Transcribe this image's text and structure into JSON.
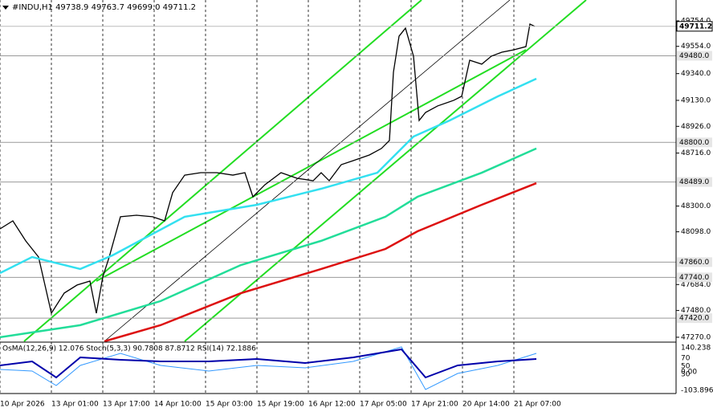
{
  "chart_data": {
    "type": "line",
    "header": "#INDU,H1 49738.9 49763.7 49699.0 49711.2",
    "xlim": [
      0,
      210.5
    ],
    "ylim": [
      47238,
      49918
    ],
    "grid": true,
    "xticks": [
      {
        "value": 0,
        "label": "10 Apr 2026"
      },
      {
        "value": 16,
        "label": "13 Apr 01:00"
      },
      {
        "value": 32,
        "label": "13 Apr 17:00"
      },
      {
        "value": 48,
        "label": "14 Apr 10:00"
      },
      {
        "value": 64,
        "label": "15 Apr 03:00"
      },
      {
        "value": 80,
        "label": "15 Apr 19:00"
      },
      {
        "value": 96,
        "label": "16 Apr 12:00"
      },
      {
        "value": 112,
        "label": "17 Apr 05:00"
      },
      {
        "value": 128,
        "label": "17 Apr 21:00"
      },
      {
        "value": 144,
        "label": "20 Apr 14:00"
      },
      {
        "value": 160,
        "label": "21 Apr 07:00"
      }
    ],
    "yticks": [
      {
        "value": 49754,
        "label": "49754.0"
      },
      {
        "value": 49554,
        "label": "49554.0"
      },
      {
        "value": 49340,
        "label": "49340.0"
      },
      {
        "value": 49130,
        "label": "49130.0"
      },
      {
        "value": 48926,
        "label": "48926.0"
      },
      {
        "value": 48716,
        "label": "48716.0"
      },
      {
        "value": 48300,
        "label": "48300.0"
      },
      {
        "value": 48098,
        "label": "48098.0"
      },
      {
        "value": 47684,
        "label": "47684.0"
      },
      {
        "value": 47480,
        "label": "47480.0"
      },
      {
        "value": 47270,
        "label": "47270.0"
      }
    ],
    "levels": [
      {
        "value": 49480,
        "label": "49480.0"
      },
      {
        "value": 48800,
        "label": "48800.0"
      },
      {
        "value": 48489,
        "label": "48489.0"
      },
      {
        "value": 47860,
        "label": "47860.0"
      },
      {
        "value": 47740,
        "label": "47740.0"
      },
      {
        "value": 47420,
        "label": "47420.0"
      }
    ],
    "last_price": {
      "value": 49711.2,
      "label": "49711.2"
    },
    "series": [
      {
        "color": "#000000",
        "x": [
          0,
          4,
          8,
          12,
          16,
          20,
          24,
          28,
          30,
          32,
          34,
          37.5,
          42.5,
          47.5,
          51.25,
          53.75,
          57.5,
          62.5,
          67.5,
          72.5,
          76.25,
          78.75,
          82.5,
          87.5,
          92.5,
          97.5,
          100,
          102.5,
          106.25,
          110,
          115,
          118.75,
          121.25,
          122.5,
          124.25,
          126.25,
          128.75,
          130.5,
          132.5,
          136.25,
          141.25,
          143.75,
          146.25,
          150,
          153,
          156.25,
          160,
          163.75,
          165,
          166.5
        ],
        "values": [
          48121,
          48184,
          48027,
          47900,
          47459,
          47617,
          47680,
          47711,
          47459,
          47743,
          47900,
          48216,
          48228,
          48216,
          48184,
          48405,
          48543,
          48562,
          48562,
          48543,
          48562,
          48373,
          48468,
          48562,
          48518,
          48499,
          48562,
          48499,
          48625,
          48657,
          48701,
          48752,
          48815,
          49351,
          49634,
          49697,
          49477,
          48972,
          49035,
          49086,
          49130,
          49162,
          49445,
          49414,
          49477,
          49508,
          49527,
          49552,
          49729,
          49711.2
        ]
      },
      {
        "color": "#33e0f0",
        "x": [
          0,
          10,
          25,
          35,
          57.5,
          80,
          100,
          117.5,
          128.75,
          140,
          155,
          167
        ],
        "values": [
          47774,
          47900,
          47806,
          47913,
          48216,
          48310,
          48436,
          48562,
          48846,
          48972,
          49161,
          49300
        ]
      },
      {
        "color": "#22dd99",
        "x": [
          0,
          25,
          50,
          75,
          100,
          120,
          130,
          150,
          167
        ],
        "values": [
          47270,
          47365,
          47554,
          47837,
          48027,
          48216,
          48373,
          48562,
          48752
        ]
      },
      {
        "color": "#dd1111",
        "x": [
          32.5,
          50,
          75,
          100,
          120,
          130,
          150,
          167
        ],
        "values": [
          47238,
          47365,
          47616,
          47806,
          47963,
          48102,
          48310,
          48480
        ]
      }
    ],
    "indicator": {
      "label": "OsMA(12,26,9) 12.076 Stoch(5,3,3) 90.7808 87.8712 RSI(14) 72.1886",
      "ticks": [
        "140.238",
        "70",
        "50",
        "30",
        "0.00",
        "-103.896"
      ]
    }
  }
}
